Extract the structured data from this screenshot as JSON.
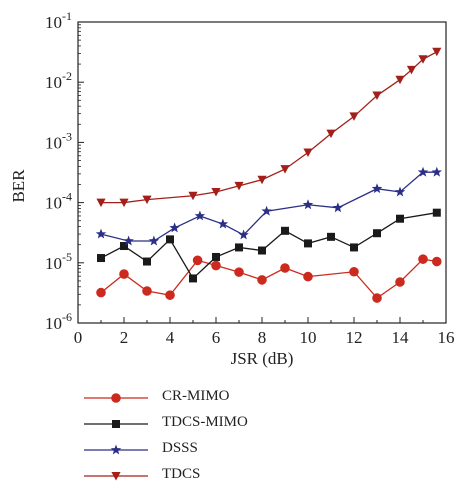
{
  "chart_data": {
    "type": "line",
    "title": "",
    "xlabel": "JSR (dB)",
    "ylabel": "BER",
    "xlim": [
      0,
      16
    ],
    "ylim_exp": [
      -6,
      -1
    ],
    "yscale": "log",
    "x_ticks": [
      "0",
      "2",
      "4",
      "6",
      "8",
      "10",
      "12",
      "14",
      "16"
    ],
    "y_ticks": [
      {
        "base": "10",
        "exp": "-6"
      },
      {
        "base": "10",
        "exp": "-5"
      },
      {
        "base": "10",
        "exp": "-4"
      },
      {
        "base": "10",
        "exp": "-3"
      },
      {
        "base": "10",
        "exp": "-2"
      },
      {
        "base": "10",
        "exp": "-1"
      }
    ],
    "grid": false,
    "legend_position": "below",
    "series": [
      {
        "name": "CR-MIMO",
        "color": "#cc2a1e",
        "marker": "circle",
        "x": [
          1,
          2,
          3,
          4,
          5.2,
          6,
          7,
          8,
          9,
          10,
          12,
          13,
          14,
          15,
          15.6
        ],
        "y": [
          3.2e-06,
          6.5e-06,
          3.4e-06,
          2.9e-06,
          1.1e-05,
          9e-06,
          7e-06,
          5.2e-06,
          8.2e-06,
          5.9e-06,
          7.1e-06,
          2.6e-06,
          4.8e-06,
          1.15e-05,
          1.05e-05
        ]
      },
      {
        "name": "TDCS-MIMO",
        "color": "#1a1a1a",
        "marker": "square",
        "x": [
          1,
          2,
          3,
          4,
          5,
          6,
          7,
          8,
          9,
          10,
          11,
          12,
          13,
          14,
          15.6
        ],
        "y": [
          1.2e-05,
          1.9e-05,
          1.05e-05,
          2.45e-05,
          5.5e-06,
          1.25e-05,
          1.8e-05,
          1.6e-05,
          3.4e-05,
          2.1e-05,
          2.7e-05,
          1.8e-05,
          3.1e-05,
          5.4e-05,
          6.8e-05
        ]
      },
      {
        "name": "DSSS",
        "color": "#2b2f86",
        "marker": "star",
        "x": [
          1,
          2.2,
          3.3,
          4.2,
          5.3,
          6.3,
          7.2,
          8.2,
          10,
          11.3,
          13,
          14,
          15,
          15.6
        ],
        "y": [
          3e-05,
          2.3e-05,
          2.3e-05,
          3.8e-05,
          6e-05,
          4.4e-05,
          2.9e-05,
          7.2e-05,
          9.2e-05,
          8.2e-05,
          0.00017,
          0.00015,
          0.00032,
          0.00032
        ]
      },
      {
        "name": "TDCS",
        "color": "#a3201a",
        "marker": "triangle-down",
        "x": [
          1,
          2,
          3,
          5,
          6,
          7,
          8,
          9,
          10,
          11,
          12,
          13,
          14,
          14.5,
          15,
          15.6
        ],
        "y": [
          0.0001,
          0.0001,
          0.000112,
          0.00013,
          0.00015,
          0.00019,
          0.00024,
          0.00036,
          0.00068,
          0.0014,
          0.0027,
          0.006,
          0.011,
          0.016,
          0.024,
          0.032
        ]
      }
    ]
  }
}
